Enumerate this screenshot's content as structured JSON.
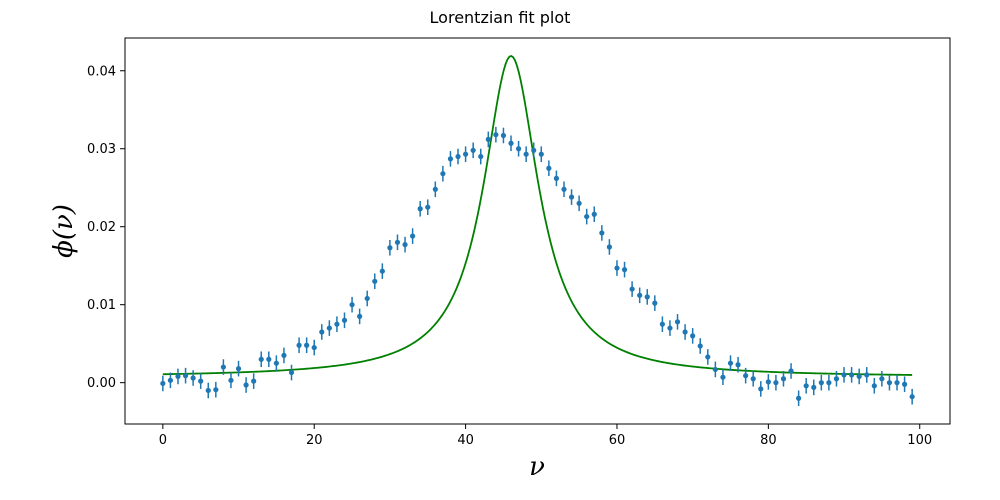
{
  "chart_data": {
    "type": "scatter",
    "title": "Lorentzian fit plot",
    "xlabel": "ν",
    "ylabel": "ϕ(ν)",
    "xlim": [
      -5,
      104
    ],
    "ylim": [
      -0.0053,
      0.0442
    ],
    "x_ticks": [
      0,
      20,
      40,
      60,
      80,
      100
    ],
    "y_ticks": [
      0.0,
      0.01,
      0.02,
      0.03,
      0.04
    ],
    "x_tick_labels": [
      "0",
      "20",
      "40",
      "60",
      "80",
      "100"
    ],
    "y_tick_labels": [
      "0.00",
      "0.01",
      "0.02",
      "0.03",
      "0.04"
    ],
    "grid": false,
    "colors": {
      "data": "#1f77b4",
      "fit": "#008000"
    },
    "series": [
      {
        "kind": "errorbar",
        "x": [
          0,
          1,
          2,
          3,
          4,
          5,
          6,
          7,
          8,
          9,
          10,
          11,
          12,
          13,
          14,
          15,
          16,
          17,
          18,
          19,
          20,
          21,
          22,
          23,
          24,
          25,
          26,
          27,
          28,
          29,
          30,
          31,
          32,
          33,
          34,
          35,
          36,
          37,
          38,
          39,
          40,
          41,
          42,
          43,
          44,
          45,
          46,
          47,
          48,
          49,
          50,
          51,
          52,
          53,
          54,
          55,
          56,
          57,
          58,
          59,
          60,
          61,
          62,
          63,
          64,
          65,
          66,
          67,
          68,
          69,
          70,
          71,
          72,
          73,
          74,
          75,
          76,
          77,
          78,
          79,
          80,
          81,
          82,
          83,
          84,
          85,
          86,
          87,
          88,
          89,
          90,
          91,
          92,
          93,
          94,
          95,
          96,
          97,
          98,
          99
        ],
        "y": [
          -0.0001,
          0.0003,
          0.0008,
          0.0009,
          0.0006,
          0.0002,
          -0.001,
          -0.0009,
          0.002,
          0.0003,
          0.0018,
          -0.0003,
          0.0002,
          0.003,
          0.003,
          0.0025,
          0.0035,
          0.0013,
          0.0048,
          0.0048,
          0.0045,
          0.0065,
          0.007,
          0.0075,
          0.008,
          0.01,
          0.0085,
          0.0108,
          0.013,
          0.0143,
          0.0173,
          0.018,
          0.0177,
          0.0188,
          0.0223,
          0.0225,
          0.0248,
          0.0268,
          0.0287,
          0.029,
          0.0293,
          0.0298,
          0.029,
          0.0312,
          0.0318,
          0.0317,
          0.0307,
          0.03,
          0.0293,
          0.0298,
          0.0293,
          0.0275,
          0.0262,
          0.0248,
          0.0238,
          0.023,
          0.0213,
          0.0216,
          0.0192,
          0.0174,
          0.0147,
          0.0145,
          0.012,
          0.0112,
          0.011,
          0.0102,
          0.0075,
          0.007,
          0.0078,
          0.0065,
          0.006,
          0.0047,
          0.0033,
          0.0017,
          0.0007,
          0.0025,
          0.0023,
          0.0009,
          0.0005,
          -0.0008,
          0.0001,
          0.0,
          0.0005,
          0.0015,
          -0.002,
          -0.0004,
          -0.0006,
          0.0,
          0.0,
          0.0005,
          0.001,
          0.001,
          0.0008,
          0.001,
          -0.0004,
          0.0005,
          0.0,
          0.0,
          -0.0002,
          -0.0018
        ],
        "yerr": 0.001
      },
      {
        "kind": "line",
        "model": "lorentzian",
        "x0": 46,
        "gamma": 4.45,
        "amplitude": 0.0412,
        "offset": 0.0007,
        "x_range": [
          0,
          99
        ]
      }
    ]
  }
}
